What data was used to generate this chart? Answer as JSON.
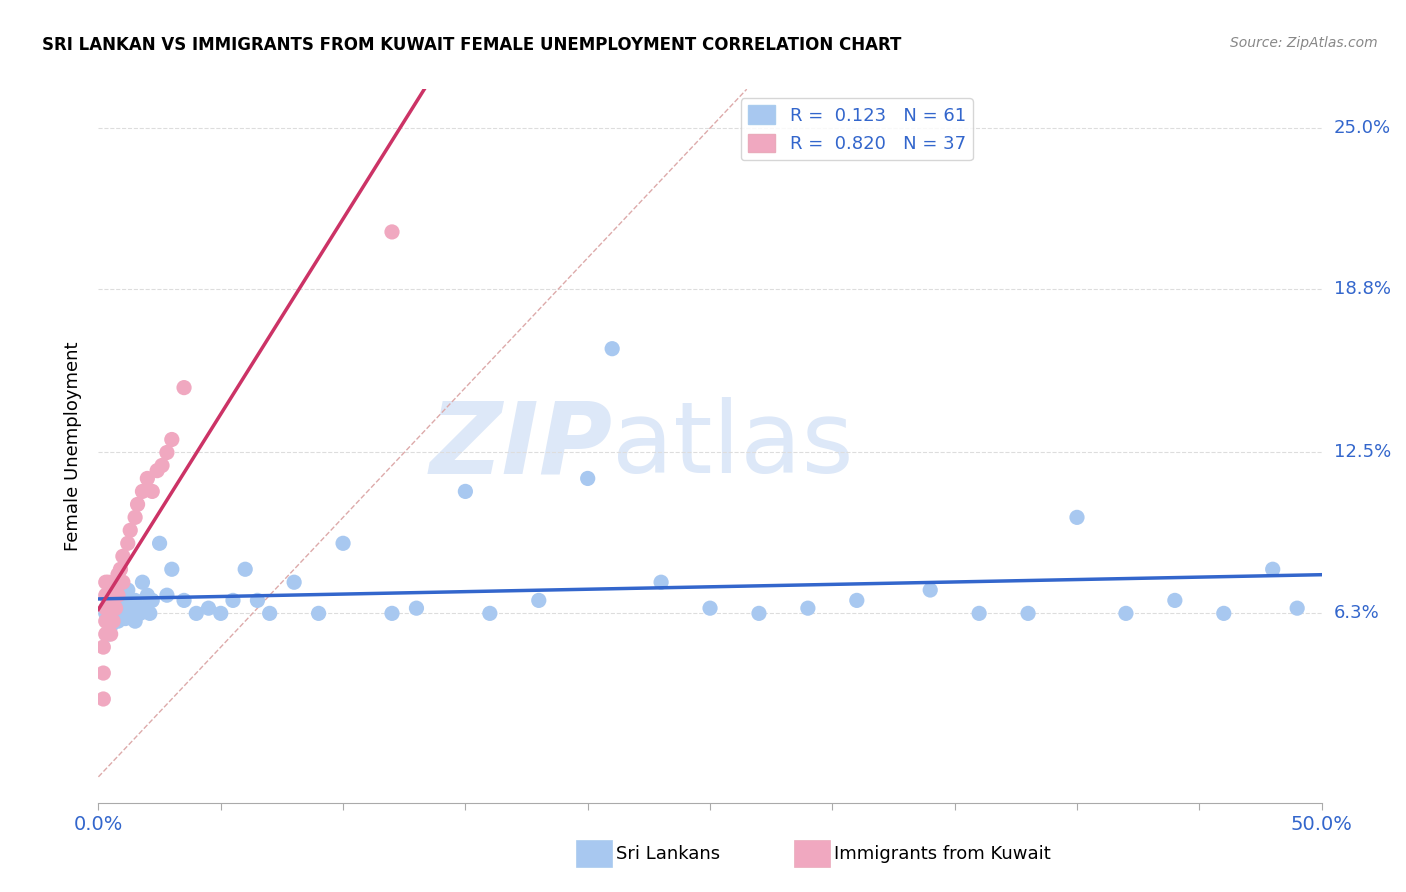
{
  "title": "SRI LANKAN VS IMMIGRANTS FROM KUWAIT FEMALE UNEMPLOYMENT CORRELATION CHART",
  "source": "Source: ZipAtlas.com",
  "ylabel": "Female Unemployment",
  "xlim": [
    0.0,
    0.5
  ],
  "ylim": [
    -0.01,
    0.265
  ],
  "yticks": [
    0.063,
    0.125,
    0.188,
    0.25
  ],
  "ytick_labels": [
    "6.3%",
    "12.5%",
    "18.8%",
    "25.0%"
  ],
  "xticks": [
    0.0,
    0.05,
    0.1,
    0.15,
    0.2,
    0.25,
    0.3,
    0.35,
    0.4,
    0.45,
    0.5
  ],
  "color_sri": "#a8c8f0",
  "color_kuwait": "#f0a8c0",
  "trendline_sri_color": "#3366cc",
  "trendline_kuwait_color": "#cc3366",
  "watermark1": "ZIP",
  "watermark2": "atlas",
  "watermark_color": "#dde8f8",
  "sri_x": [
    0.003,
    0.004,
    0.005,
    0.005,
    0.006,
    0.007,
    0.007,
    0.008,
    0.008,
    0.009,
    0.01,
    0.01,
    0.011,
    0.012,
    0.012,
    0.013,
    0.014,
    0.015,
    0.015,
    0.016,
    0.017,
    0.018,
    0.019,
    0.02,
    0.021,
    0.022,
    0.025,
    0.028,
    0.03,
    0.035,
    0.04,
    0.045,
    0.05,
    0.055,
    0.06,
    0.065,
    0.07,
    0.08,
    0.09,
    0.1,
    0.12,
    0.13,
    0.15,
    0.16,
    0.18,
    0.2,
    0.21,
    0.23,
    0.25,
    0.27,
    0.29,
    0.31,
    0.34,
    0.36,
    0.38,
    0.4,
    0.42,
    0.44,
    0.46,
    0.48,
    0.49
  ],
  "sri_y": [
    0.063,
    0.055,
    0.07,
    0.058,
    0.065,
    0.068,
    0.062,
    0.06,
    0.072,
    0.064,
    0.063,
    0.068,
    0.061,
    0.065,
    0.072,
    0.066,
    0.063,
    0.068,
    0.06,
    0.065,
    0.063,
    0.075,
    0.065,
    0.07,
    0.063,
    0.068,
    0.09,
    0.07,
    0.08,
    0.068,
    0.063,
    0.065,
    0.063,
    0.068,
    0.08,
    0.068,
    0.063,
    0.075,
    0.063,
    0.09,
    0.063,
    0.065,
    0.11,
    0.063,
    0.068,
    0.115,
    0.165,
    0.075,
    0.065,
    0.063,
    0.065,
    0.068,
    0.072,
    0.063,
    0.063,
    0.1,
    0.063,
    0.068,
    0.063,
    0.08,
    0.065
  ],
  "kuwait_x": [
    0.002,
    0.002,
    0.002,
    0.003,
    0.003,
    0.003,
    0.003,
    0.003,
    0.004,
    0.004,
    0.004,
    0.005,
    0.005,
    0.005,
    0.006,
    0.006,
    0.006,
    0.007,
    0.007,
    0.008,
    0.008,
    0.009,
    0.01,
    0.01,
    0.012,
    0.013,
    0.015,
    0.016,
    0.018,
    0.02,
    0.022,
    0.024,
    0.026,
    0.028,
    0.03,
    0.035,
    0.12
  ],
  "kuwait_y": [
    0.03,
    0.04,
    0.05,
    0.055,
    0.06,
    0.065,
    0.07,
    0.075,
    0.06,
    0.068,
    0.075,
    0.055,
    0.065,
    0.072,
    0.06,
    0.068,
    0.075,
    0.065,
    0.072,
    0.07,
    0.078,
    0.08,
    0.075,
    0.085,
    0.09,
    0.095,
    0.1,
    0.105,
    0.11,
    0.115,
    0.11,
    0.118,
    0.12,
    0.125,
    0.13,
    0.15,
    0.21
  ],
  "diag_line_color": "#cccccc",
  "grid_color": "#dddddd",
  "legend_text_color": "#3366cc",
  "legend_r_color": "black"
}
